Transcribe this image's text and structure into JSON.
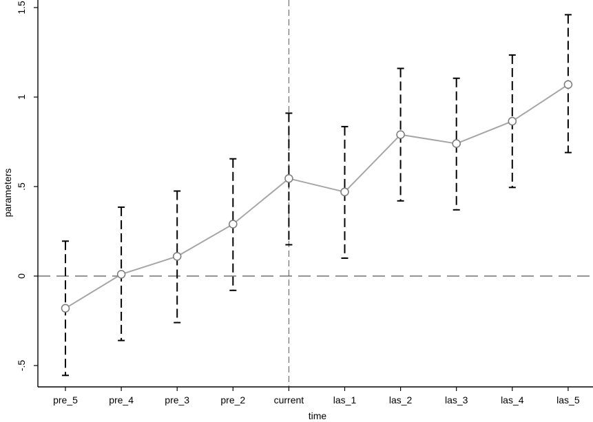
{
  "chart_data": {
    "type": "line",
    "xlabel": "time",
    "ylabel": "parameters",
    "categories": [
      "pre_5",
      "pre_4",
      "pre_3",
      "pre_2",
      "current",
      "las_1",
      "las_2",
      "las_3",
      "las_4",
      "las_5"
    ],
    "series": [
      {
        "values": [
          -0.18,
          0.01,
          0.11,
          0.29,
          0.545,
          0.47,
          0.79,
          0.74,
          0.865,
          1.07
        ],
        "lower": [
          -0.555,
          -0.36,
          -0.26,
          -0.08,
          0.175,
          0.1,
          0.42,
          0.37,
          0.495,
          0.69
        ],
        "upper": [
          0.195,
          0.385,
          0.475,
          0.655,
          0.91,
          0.835,
          1.16,
          1.105,
          1.235,
          1.46
        ]
      }
    ],
    "yticks": [
      {
        "value": -0.5,
        "label": "-.5"
      },
      {
        "value": 0,
        "label": "0"
      },
      {
        "value": 0.5,
        "label": ".5"
      },
      {
        "value": 1,
        "label": "1"
      },
      {
        "value": 1.5,
        "label": "1.5"
      }
    ],
    "ylim": [
      -0.62,
      1.55
    ],
    "reference_lines": {
      "y": 0,
      "x": "current"
    },
    "grid": false,
    "colors": {
      "line": "#a6a6a6",
      "marker": "#7f7f7f",
      "error_bar": "#000000",
      "reference": "#555555"
    }
  }
}
